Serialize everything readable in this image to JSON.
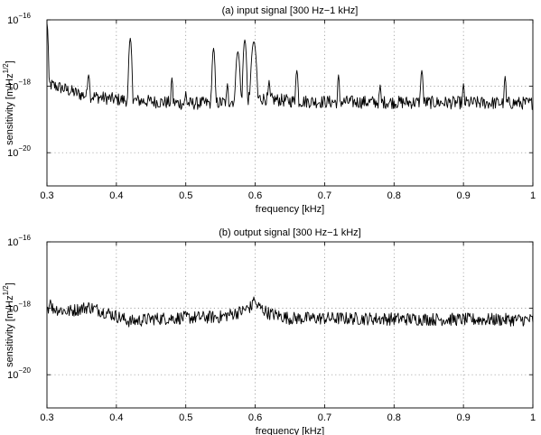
{
  "chart_data": [
    {
      "type": "line",
      "title": "(a) input signal [300 Hz−1 kHz]",
      "xlabel": "frequency [kHz]",
      "ylabel_prefix": "sensitivity [m/Hz",
      "ylabel_exp": "1/2",
      "ylabel_suffix": "]",
      "xlim": [
        0.3,
        1.0
      ],
      "ylim": [
        1e-21,
        1e-16
      ],
      "yscale": "log",
      "grid": true,
      "xticks": [
        {
          "value": 0.3,
          "label": "0.3"
        },
        {
          "value": 0.4,
          "label": "0.4"
        },
        {
          "value": 0.5,
          "label": "0.5"
        },
        {
          "value": 0.6,
          "label": "0.6"
        },
        {
          "value": 0.7,
          "label": "0.7"
        },
        {
          "value": 0.8,
          "label": "0.8"
        },
        {
          "value": 0.9,
          "label": "0.9"
        },
        {
          "value": 1.0,
          "label": "1"
        }
      ],
      "yticks": [
        {
          "value": 1e-16,
          "base": "10",
          "exp": "−16"
        },
        {
          "value": 1e-18,
          "base": "10",
          "exp": "−18"
        },
        {
          "value": 1e-20,
          "base": "10",
          "exp": "−20"
        }
      ],
      "baseline": {
        "x": [
          0.3,
          0.32,
          0.35,
          0.4,
          0.45,
          0.5,
          0.55,
          0.6,
          0.65,
          0.7,
          0.8,
          0.9,
          1.0
        ],
        "y": [
          1.2e-18,
          9e-19,
          5.5e-19,
          4e-19,
          3.5e-19,
          3e-19,
          3.2e-19,
          4.5e-19,
          3.6e-19,
          3.4e-19,
          3.3e-19,
          3.2e-19,
          3.1e-19
        ]
      },
      "peaks": [
        {
          "x": 0.3,
          "y": 8e-17,
          "w": 0.0015
        },
        {
          "x": 0.36,
          "y": 2.2e-18,
          "w": 0.002
        },
        {
          "x": 0.42,
          "y": 2.8e-17,
          "w": 0.0018
        },
        {
          "x": 0.48,
          "y": 1.8e-18,
          "w": 0.0015
        },
        {
          "x": 0.5,
          "y": 7e-19,
          "w": 0.0015
        },
        {
          "x": 0.54,
          "y": 1.4e-17,
          "w": 0.0018
        },
        {
          "x": 0.56,
          "y": 1.2e-18,
          "w": 0.0015
        },
        {
          "x": 0.575,
          "y": 1.1e-17,
          "w": 0.0025
        },
        {
          "x": 0.585,
          "y": 2.5e-17,
          "w": 0.002
        },
        {
          "x": 0.598,
          "y": 2.2e-17,
          "w": 0.003
        },
        {
          "x": 0.62,
          "y": 1.5e-18,
          "w": 0.0015
        },
        {
          "x": 0.66,
          "y": 3e-18,
          "w": 0.0018
        },
        {
          "x": 0.72,
          "y": 2.2e-18,
          "w": 0.0015
        },
        {
          "x": 0.78,
          "y": 1.1e-18,
          "w": 0.0015
        },
        {
          "x": 0.84,
          "y": 3e-18,
          "w": 0.0018
        },
        {
          "x": 0.9,
          "y": 1.2e-18,
          "w": 0.0015
        },
        {
          "x": 0.96,
          "y": 2e-18,
          "w": 0.0015
        }
      ]
    },
    {
      "type": "line",
      "title": "(b) output signal [300 Hz−1 kHz]",
      "xlabel": "frequency [kHz]",
      "ylabel_prefix": "sensitivity [m/Hz",
      "ylabel_exp": "1/2",
      "ylabel_suffix": "]",
      "xlim": [
        0.3,
        1.0
      ],
      "ylim": [
        1e-21,
        1e-16
      ],
      "yscale": "log",
      "grid": true,
      "xticks": [
        {
          "value": 0.3,
          "label": "0.3"
        },
        {
          "value": 0.4,
          "label": "0.4"
        },
        {
          "value": 0.5,
          "label": "0.5"
        },
        {
          "value": 0.6,
          "label": "0.6"
        },
        {
          "value": 0.7,
          "label": "0.7"
        },
        {
          "value": 0.8,
          "label": "0.8"
        },
        {
          "value": 0.9,
          "label": "0.9"
        },
        {
          "value": 1.0,
          "label": "1"
        }
      ],
      "yticks": [
        {
          "value": 1e-16,
          "base": "10",
          "exp": "−16"
        },
        {
          "value": 1e-18,
          "base": "10",
          "exp": "−18"
        },
        {
          "value": 1e-20,
          "base": "10",
          "exp": "−20"
        }
      ],
      "baseline": {
        "x": [
          0.3,
          0.33,
          0.36,
          0.39,
          0.42,
          0.45,
          0.5,
          0.55,
          0.58,
          0.6,
          0.62,
          0.65,
          0.7,
          0.8,
          0.9,
          1.0
        ],
        "y": [
          1.1e-18,
          8e-19,
          1.1e-18,
          7e-19,
          4e-19,
          4.8e-19,
          5.2e-19,
          5.5e-19,
          8e-19,
          1.3e-18,
          7e-19,
          5e-19,
          5e-19,
          4.8e-19,
          4.6e-19,
          4.5e-19
        ]
      },
      "peaks": [
        {
          "x": 0.305,
          "y": 1.8e-18,
          "w": 0.002
        },
        {
          "x": 0.598,
          "y": 2.2e-18,
          "w": 0.002
        },
        {
          "x": 0.765,
          "y": 2.5e-19,
          "w": 0.0012
        },
        {
          "x": 0.42,
          "y": 2.8e-19,
          "w": 0.0012
        }
      ]
    }
  ]
}
